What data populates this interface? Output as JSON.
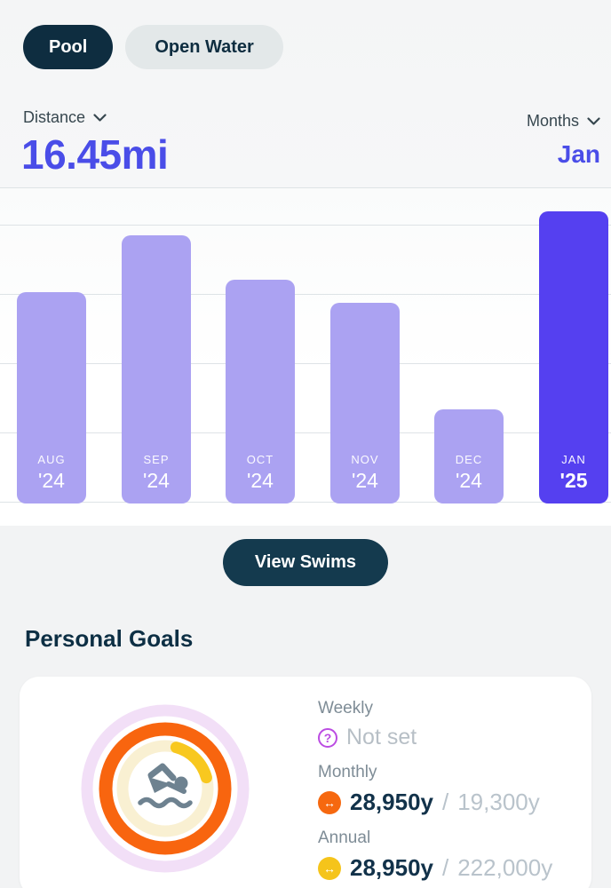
{
  "toggle": {
    "pool_label": "Pool",
    "open_water_label": "Open Water"
  },
  "filters": {
    "metric_label": "Distance",
    "period_label": "Months"
  },
  "summary": {
    "distance_value": "16.45mi",
    "selected_month": "Jan"
  },
  "chart_data": {
    "type": "bar",
    "categories": [
      "AUG '24",
      "SEP '24",
      "OCT '24",
      "NOV '24",
      "DEC '24",
      "JAN '25"
    ],
    "values": [
      11.9,
      15.1,
      12.6,
      11.3,
      5.3,
      16.45
    ],
    "unit": "mi",
    "selected_category": "JAN '25",
    "selected_value_label": "16.45mi",
    "ylim": [
      0,
      18
    ],
    "gridline_step": 4,
    "grid": true,
    "legend": "none",
    "bar_color": "#ABA2F2",
    "selected_bar_color": "#5540F0"
  },
  "actions": {
    "view_swims_label": "View Swims"
  },
  "goals": {
    "title": "Personal Goals",
    "weekly": {
      "label": "Weekly",
      "status": "Not set"
    },
    "monthly": {
      "label": "Monthly",
      "current": "28,950y",
      "separator": "/",
      "target": "19,300y"
    },
    "annual": {
      "label": "Annual",
      "current": "28,950y",
      "separator": "/",
      "target": "222,000y"
    },
    "icons": {
      "question_glyph": "?",
      "arrow_glyph": "↔",
      "monthly_icon_color": "#F6680F",
      "annual_icon_color": "#F5C41B",
      "weekly_icon_color": "#BB4CE2"
    },
    "rings": {
      "outer_color": "#F2DFF7",
      "middle_color": "#F8650F",
      "inner_track_color": "#F9F0D2",
      "inner_progress_color": "#F8C81F",
      "center_icon": "swimmer",
      "center_icon_color": "#6E8290"
    }
  },
  "colors": {
    "accent_purple": "#4A4DE8",
    "dark_navy": "#0E2D40",
    "button_navy": "#143A4E",
    "page_bg": "#F2F3F4",
    "gridline": "#DEE3E6"
  }
}
